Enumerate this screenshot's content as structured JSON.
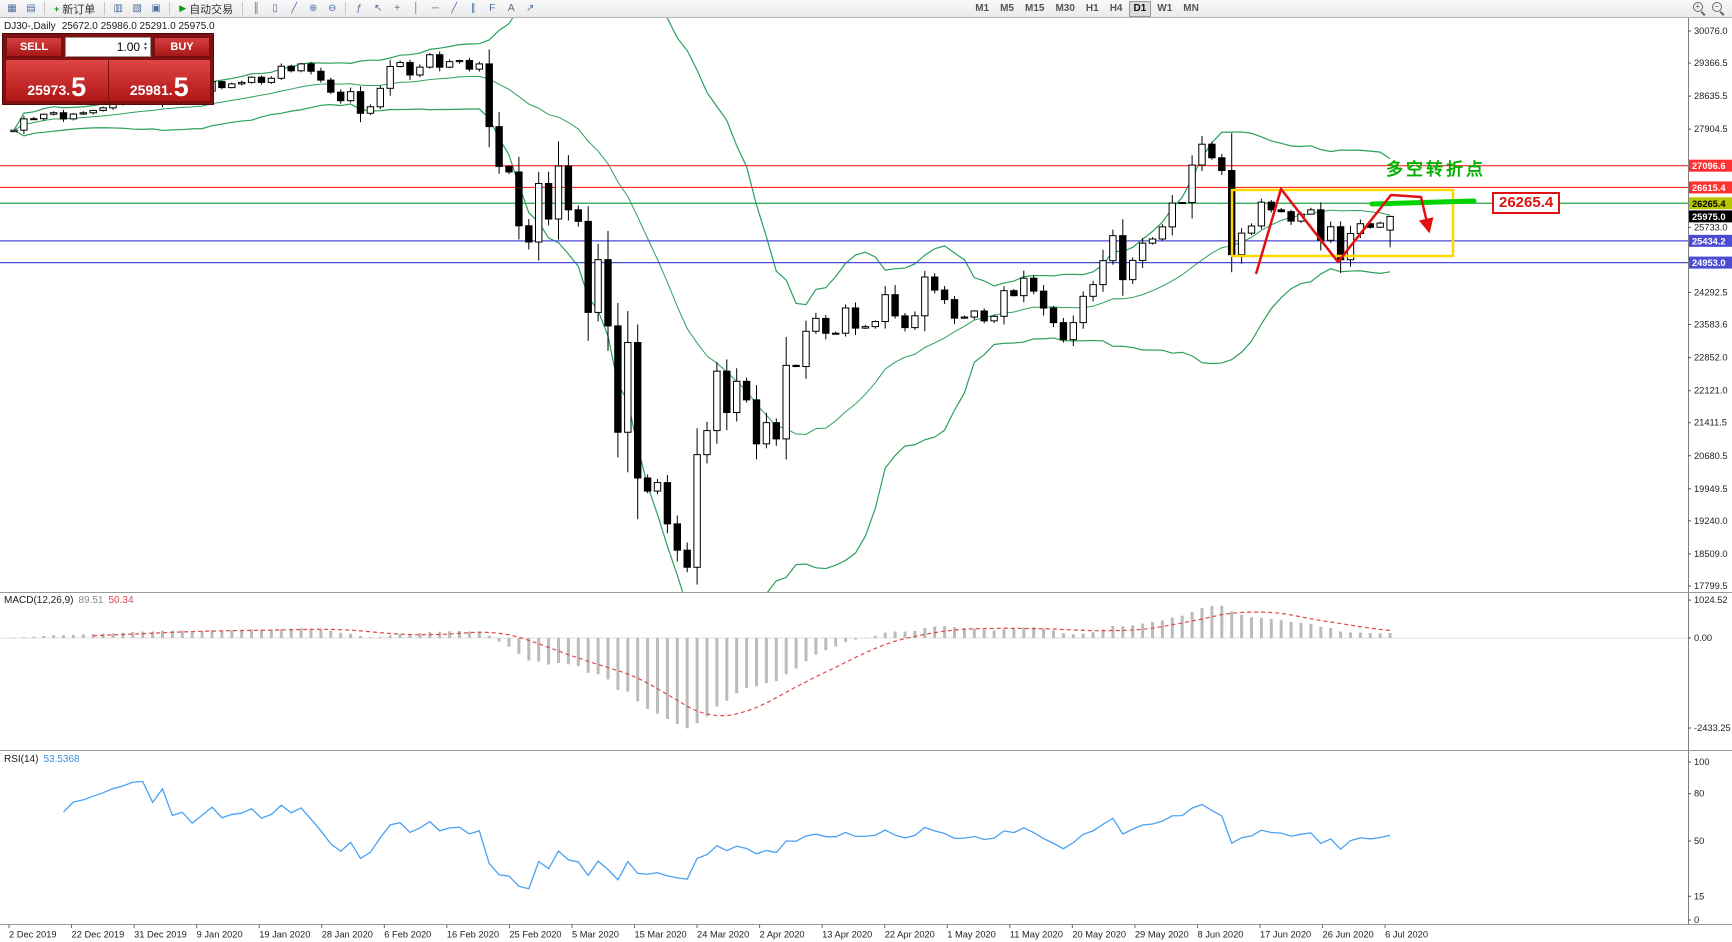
{
  "toolbar": {
    "new_order_label": "新订单",
    "auto_trading_label": "自动交易",
    "icons_left": [
      "new-chart",
      "chart-profiles"
    ],
    "icons_mid": [
      "market-watch",
      "navigator",
      "terminal"
    ],
    "icons_chart": [
      "bars-chart",
      "candles-chart",
      "line-chart",
      "zoom-in",
      "zoom-out"
    ],
    "icons_tools": [
      "indicators",
      "cursor",
      "crosshair",
      "vertical-line",
      "horizontal-line",
      "trendline",
      "channel",
      "fibonacci",
      "text-label",
      "arrows"
    ],
    "icons_right": [
      "zoom-in-magnifier",
      "zoom-out-magnifier"
    ],
    "timeframes": [
      "M1",
      "M5",
      "M15",
      "M30",
      "H1",
      "H4",
      "D1",
      "W1",
      "MN"
    ],
    "active_timeframe": "D1"
  },
  "symbol_info": {
    "title": "DJ30-,Daily",
    "values": "25672.0 25986.0 25291.0 25975.0"
  },
  "trade_panel": {
    "sell_label": "SELL",
    "buy_label": "BUY",
    "volume": "1.00",
    "sell_price_main": "25973.",
    "sell_price_big": "5",
    "buy_price_main": "25981.",
    "buy_price_big": "5"
  },
  "annotations": {
    "turning_point_text": "多空转折点",
    "price_callout": "26265.4"
  },
  "colors": {
    "bull": "#ffffff",
    "bear": "#000000",
    "outline": "#000000",
    "box_yellow": "#ffd800",
    "highlight_green": "#00d300",
    "zigzag_red": "#e01010"
  },
  "chart_data": {
    "type": "candlestick",
    "symbol": "DJ30-",
    "period": "Daily",
    "current_bar": {
      "open": 25672.0,
      "high": 25986.0,
      "low": 25291.0,
      "close": 25975.0
    },
    "first_open": 27850,
    "closes": [
      27882,
      28132,
      28136,
      28235,
      28268,
      28132,
      28239,
      28267,
      28319,
      28376,
      28455,
      28515,
      28621,
      28645,
      28538,
      28869,
      28635,
      28704,
      28584,
      28746,
      28957,
      28824,
      28907,
      28939,
      29054,
      28939,
      29030,
      29297,
      29196,
      29348,
      29186,
      28990,
      28723,
      28535,
      28734,
      28256,
      28400,
      28808,
      29290,
      29380,
      29103,
      29277,
      29551,
      29276,
      29398,
      29423,
      29232,
      29348,
      27961,
      27081,
      26958,
      25767,
      25409,
      26703,
      25917,
      27090,
      26121,
      25865,
      23851,
      25018,
      23553,
      21200,
      23185,
      20189,
      19899,
      20087,
      19174,
      18592,
      18214,
      20705,
      21237,
      22552,
      21637,
      22327,
      21917,
      20944,
      21413,
      21053,
      22680,
      22654,
      23434,
      23719,
      23390,
      23391,
      23950,
      23504,
      23537,
      23650,
      24243,
      23775,
      23515,
      23776,
      24634,
      24346,
      24134,
      23724,
      23749,
      23883,
      23665,
      23765,
      24332,
      24222,
      24608,
      24322,
      23948,
      23625,
      23248,
      23626,
      24207,
      24466,
      24995,
      25549,
      24576,
      25002,
      25383,
      25475,
      25743,
      26270,
      26282,
      27111,
      27572,
      27272,
      26990,
      25128,
      25605,
      25763,
      26290,
      26120,
      26080,
      25871,
      26025,
      26120,
      25446,
      25746,
      25016,
      25596,
      25813,
      25735,
      25827,
      25975
    ],
    "price_axis_ticks": [
      30076.0,
      29366.5,
      28635.5,
      27904.5,
      27173.5,
      26442.5,
      25733.0,
      25022.5,
      24292.5,
      23583.6,
      22852.0,
      22121.0,
      21411.5,
      20680.5,
      19949.5,
      19240.0,
      18509.0,
      17799.5
    ],
    "horizontal_lines": [
      {
        "value": 27096.6,
        "color": "#ff2626",
        "label_bg": "#ff3030",
        "label_fg": "#ffffff"
      },
      {
        "value": 26615.4,
        "color": "#ff2626",
        "label_bg": "#ff3030",
        "label_fg": "#ffffff"
      },
      {
        "value": 26265.4,
        "color": "#22a24a",
        "label_bg": "#b7c400",
        "label_fg": "#000000"
      },
      {
        "value": 25434.2,
        "color": "#4b4bd4",
        "label_bg": "#4b4bd4",
        "label_fg": "#ffffff"
      },
      {
        "value": 24953.0,
        "color": "#4b4bd4",
        "label_bg": "#4b4bd4",
        "label_fg": "#ffffff"
      }
    ],
    "current_price_label": {
      "value": 25975.0,
      "bg": "#000000",
      "fg": "#ffffff"
    },
    "date_labels": [
      "2 Dec 2019",
      "22 Dec 2019",
      "31 Dec 2019",
      "9 Jan 2020",
      "19 Jan 2020",
      "28 Jan 2020",
      "6 Feb 2020",
      "16 Feb 2020",
      "25 Feb 2020",
      "5 Mar 2020",
      "15 Mar 2020",
      "24 Mar 2020",
      "2 Apr 2020",
      "13 Apr 2020",
      "22 Apr 2020",
      "1 May 2020",
      "11 May 2020",
      "20 May 2020",
      "29 May 2020",
      "8 Jun 2020",
      "17 Jun 2020",
      "26 Jun 2020",
      "6 Jul 2020"
    ],
    "bollinger": {
      "period": 20,
      "deviation": 2,
      "color": "#2ca05a"
    },
    "macd": {
      "name": "MACD(12,26,9)",
      "value_main": "89.51",
      "value_signal": "50.34",
      "axis_ticks": [
        1024.52,
        0,
        -2433.25
      ],
      "hist_color": "#bbbbbb",
      "signal_color": "#e04848"
    },
    "rsi": {
      "name": "RSI(14)",
      "value": "53.5368",
      "axis_ticks": [
        100,
        80,
        50,
        15,
        0
      ],
      "color": "#4aa2f2"
    }
  }
}
